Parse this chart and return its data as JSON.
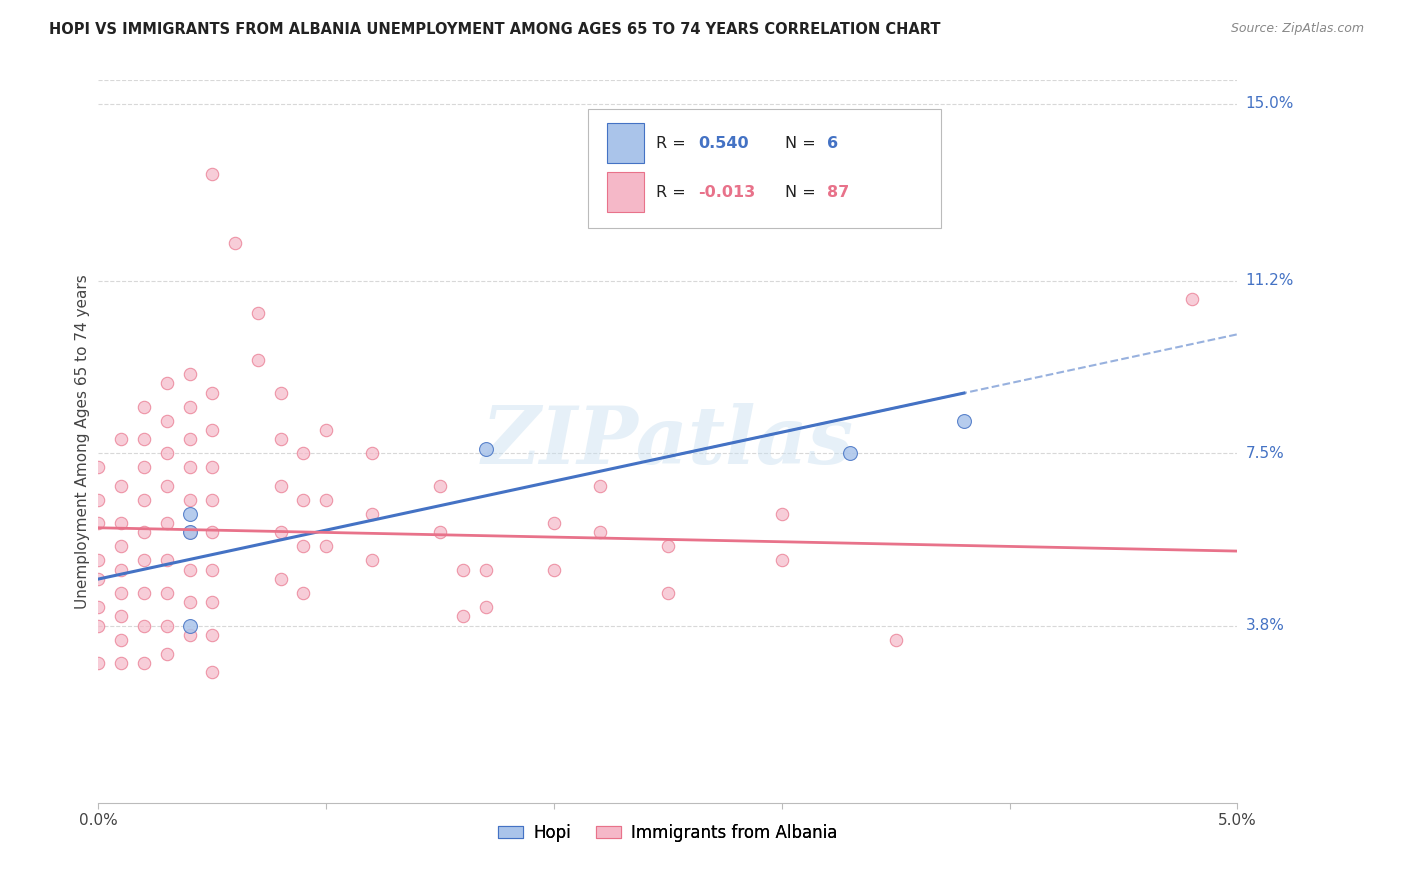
{
  "title": "HOPI VS IMMIGRANTS FROM ALBANIA UNEMPLOYMENT AMONG AGES 65 TO 74 YEARS CORRELATION CHART",
  "source": "Source: ZipAtlas.com",
  "ylabel": "Unemployment Among Ages 65 to 74 years",
  "x_min": 0.0,
  "x_max": 0.05,
  "y_min": 0.0,
  "y_max": 0.155,
  "x_ticks": [
    0.0,
    0.01,
    0.02,
    0.03,
    0.04,
    0.05
  ],
  "x_tick_labels": [
    "0.0%",
    "",
    "",
    "",
    "",
    "5.0%"
  ],
  "y_tick_labels_right": [
    "15.0%",
    "11.2%",
    "7.5%",
    "3.8%"
  ],
  "y_tick_vals_right": [
    0.15,
    0.112,
    0.075,
    0.038
  ],
  "legend_hopi_R": "0.540",
  "legend_hopi_N": "6",
  "legend_albania_R": "-0.013",
  "legend_albania_N": "87",
  "hopi_color": "#aac4ea",
  "albania_color": "#f5b8c8",
  "hopi_line_color": "#4472c4",
  "albania_line_color": "#e8728a",
  "hopi_scatter": [
    [
      0.004,
      0.062
    ],
    [
      0.004,
      0.058
    ],
    [
      0.004,
      0.038
    ],
    [
      0.017,
      0.076
    ],
    [
      0.033,
      0.075
    ],
    [
      0.038,
      0.082
    ]
  ],
  "albania_scatter": [
    [
      0.0,
      0.072
    ],
    [
      0.0,
      0.065
    ],
    [
      0.0,
      0.06
    ],
    [
      0.0,
      0.052
    ],
    [
      0.0,
      0.048
    ],
    [
      0.0,
      0.042
    ],
    [
      0.0,
      0.038
    ],
    [
      0.0,
      0.03
    ],
    [
      0.001,
      0.078
    ],
    [
      0.001,
      0.068
    ],
    [
      0.001,
      0.06
    ],
    [
      0.001,
      0.055
    ],
    [
      0.001,
      0.05
    ],
    [
      0.001,
      0.045
    ],
    [
      0.001,
      0.04
    ],
    [
      0.001,
      0.035
    ],
    [
      0.001,
      0.03
    ],
    [
      0.002,
      0.085
    ],
    [
      0.002,
      0.078
    ],
    [
      0.002,
      0.072
    ],
    [
      0.002,
      0.065
    ],
    [
      0.002,
      0.058
    ],
    [
      0.002,
      0.052
    ],
    [
      0.002,
      0.045
    ],
    [
      0.002,
      0.038
    ],
    [
      0.002,
      0.03
    ],
    [
      0.003,
      0.09
    ],
    [
      0.003,
      0.082
    ],
    [
      0.003,
      0.075
    ],
    [
      0.003,
      0.068
    ],
    [
      0.003,
      0.06
    ],
    [
      0.003,
      0.052
    ],
    [
      0.003,
      0.045
    ],
    [
      0.003,
      0.038
    ],
    [
      0.003,
      0.032
    ],
    [
      0.004,
      0.092
    ],
    [
      0.004,
      0.085
    ],
    [
      0.004,
      0.078
    ],
    [
      0.004,
      0.072
    ],
    [
      0.004,
      0.065
    ],
    [
      0.004,
      0.058
    ],
    [
      0.004,
      0.05
    ],
    [
      0.004,
      0.043
    ],
    [
      0.004,
      0.036
    ],
    [
      0.005,
      0.135
    ],
    [
      0.005,
      0.088
    ],
    [
      0.005,
      0.08
    ],
    [
      0.005,
      0.072
    ],
    [
      0.005,
      0.065
    ],
    [
      0.005,
      0.058
    ],
    [
      0.005,
      0.05
    ],
    [
      0.005,
      0.043
    ],
    [
      0.005,
      0.036
    ],
    [
      0.005,
      0.028
    ],
    [
      0.006,
      0.12
    ],
    [
      0.007,
      0.105
    ],
    [
      0.007,
      0.095
    ],
    [
      0.008,
      0.088
    ],
    [
      0.008,
      0.078
    ],
    [
      0.008,
      0.068
    ],
    [
      0.008,
      0.058
    ],
    [
      0.008,
      0.048
    ],
    [
      0.009,
      0.075
    ],
    [
      0.009,
      0.065
    ],
    [
      0.009,
      0.055
    ],
    [
      0.009,
      0.045
    ],
    [
      0.01,
      0.08
    ],
    [
      0.01,
      0.065
    ],
    [
      0.01,
      0.055
    ],
    [
      0.012,
      0.075
    ],
    [
      0.012,
      0.062
    ],
    [
      0.012,
      0.052
    ],
    [
      0.015,
      0.068
    ],
    [
      0.015,
      0.058
    ],
    [
      0.016,
      0.05
    ],
    [
      0.016,
      0.04
    ],
    [
      0.017,
      0.05
    ],
    [
      0.017,
      0.042
    ],
    [
      0.02,
      0.06
    ],
    [
      0.02,
      0.05
    ],
    [
      0.022,
      0.068
    ],
    [
      0.022,
      0.058
    ],
    [
      0.025,
      0.055
    ],
    [
      0.025,
      0.045
    ],
    [
      0.03,
      0.062
    ],
    [
      0.03,
      0.052
    ],
    [
      0.035,
      0.035
    ],
    [
      0.048,
      0.108
    ]
  ],
  "watermark": "ZIPatlas",
  "background_color": "#ffffff",
  "grid_color": "#d8d8d8",
  "hopi_line_intercept": 0.048,
  "hopi_line_slope": 1.05,
  "albania_line_intercept": 0.059,
  "albania_line_slope": -0.1
}
